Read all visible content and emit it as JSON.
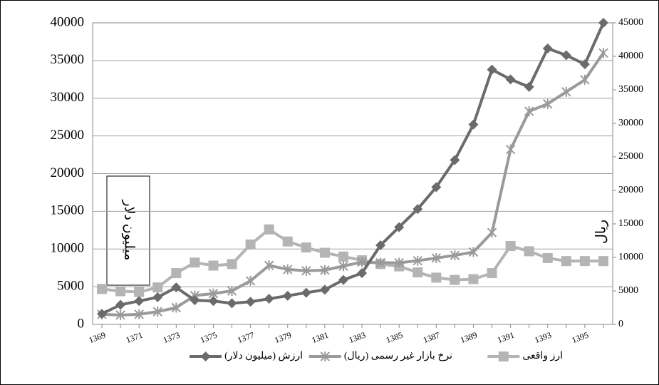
{
  "chart_data": {
    "type": "line",
    "y_axis_label": "میلیون دلار",
    "y2_axis_label": "ریال",
    "categories": [
      "1369",
      null,
      "1371",
      null,
      "1373",
      null,
      "1375",
      null,
      "1377",
      null,
      "1379",
      null,
      "1381",
      null,
      "1383",
      null,
      "1385",
      null,
      "1387",
      null,
      "1389",
      null,
      "1391",
      null,
      "1393",
      null,
      "1395",
      null
    ],
    "series": [
      {
        "name": "ارزش (میلیون دلار)",
        "color": "#6b6b6b",
        "marker": "diamond",
        "axis": "y",
        "values": [
          1400,
          2600,
          3100,
          3600,
          4900,
          3200,
          3100,
          2800,
          3000,
          3400,
          3800,
          4200,
          4600,
          5900,
          6800,
          10500,
          12900,
          15300,
          18200,
          21800,
          26500,
          33800,
          32500,
          31500,
          36600,
          35700,
          34500,
          40000
        ]
      },
      {
        "name": "نرخ بازار غیر رسمی (ریال)",
        "color": "#9a9a9a",
        "marker": "star",
        "axis": "y2",
        "values": [
          1500,
          1400,
          1500,
          1900,
          2500,
          4300,
          4600,
          5000,
          6500,
          8800,
          8200,
          8000,
          8100,
          8700,
          9300,
          9200,
          9200,
          9500,
          9900,
          10300,
          10800,
          13700,
          26100,
          31800,
          32900,
          34700,
          36500,
          40500
        ]
      },
      {
        "name": "ارز واقعی",
        "color": "#b4b4b4",
        "marker": "square",
        "axis": "y",
        "values": [
          4700,
          4400,
          4300,
          4900,
          6800,
          8200,
          7800,
          8000,
          10600,
          12600,
          11000,
          10200,
          9500,
          9000,
          8500,
          8000,
          7700,
          6900,
          6200,
          5900,
          6000,
          6800,
          10400,
          9700,
          8800,
          8400,
          8400,
          8400
        ]
      }
    ],
    "ylim": [
      0,
      40000
    ],
    "yticks": [
      0,
      5000,
      10000,
      15000,
      20000,
      25000,
      30000,
      35000,
      40000
    ],
    "y2lim": [
      0,
      45000
    ],
    "y2ticks": [
      0,
      5000,
      10000,
      15000,
      20000,
      25000,
      30000,
      35000,
      40000,
      45000
    ],
    "grid": true
  }
}
